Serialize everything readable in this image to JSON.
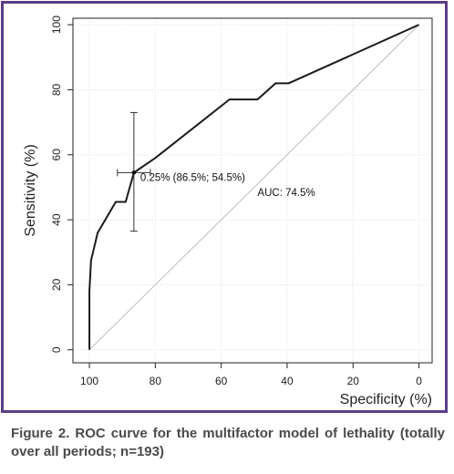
{
  "chart_data": {
    "type": "line",
    "xlabel": "Specificity (%)",
    "ylabel": "Sensitivity (%)",
    "xlim": [
      105,
      -4
    ],
    "ylim": [
      -4,
      102
    ],
    "x_reversed": true,
    "xticks": [
      100,
      80,
      60,
      40,
      20,
      0
    ],
    "yticks": [
      0,
      20,
      40,
      60,
      80,
      100
    ],
    "grid": true,
    "series": [
      {
        "x": [
          100,
          100,
          99.5,
          97.5,
          92,
          89,
          86.5,
          80,
          57.5,
          49,
          43.5,
          39.5,
          0
        ],
        "y": [
          0,
          18,
          27.5,
          36,
          45.5,
          45.5,
          54.5,
          59,
          77,
          77,
          82,
          82,
          100
        ],
        "color": "#1a1a1a"
      }
    ],
    "diagonal": {
      "x": [
        100,
        0
      ],
      "y": [
        0,
        100
      ],
      "color": "#bdbdbd"
    },
    "threshold_point": {
      "x": 86.5,
      "y": 54.5,
      "x_ci": [
        91.5,
        81.5
      ],
      "y_ci": [
        36.5,
        73
      ],
      "label": "0.25% (86.5%; 54.5%)"
    },
    "auc_label": "AUC: 74.5%",
    "auc_label_pos": {
      "x": 49,
      "y": 48.5
    }
  },
  "caption": "Figure 2. ROC curve for the multifactor model of lethality (totally over all periods; n=193)"
}
